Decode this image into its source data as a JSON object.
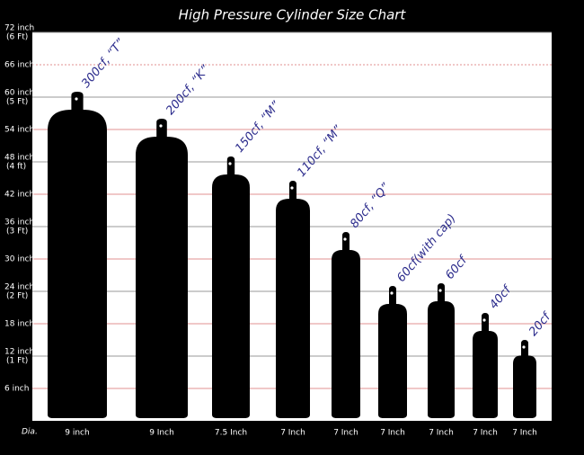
{
  "chart_data": {
    "type": "cylinder",
    "title": "High Pressure Cylinder Size Chart",
    "categories": [
      "300cf, “T”",
      "200cf, “K”",
      "150cf, “M”",
      "110cf, “M”",
      "80cf, “Q”",
      "60cf(with cap)",
      "60cf",
      "40cf",
      "20cf"
    ],
    "values": [
      61,
      56,
      49,
      44.5,
      35,
      25,
      25.5,
      20,
      15
    ],
    "diameter_title": "Dia.",
    "diameters": [
      "9 inch",
      "9 Inch",
      "7.5 Inch",
      "7 Inch",
      "7 Inch",
      "7 Inch",
      "7 Inch",
      "7 Inch",
      "7 Inch"
    ],
    "ylim": [
      0,
      72
    ],
    "yticks": [
      {
        "value": 6,
        "label": "6 inch"
      },
      {
        "value": 12,
        "label": "12 inch",
        "sub": "(1 Ft)"
      },
      {
        "value": 18,
        "label": "18 inch"
      },
      {
        "value": 24,
        "label": "24 inch",
        "sub": "(2 Ft)"
      },
      {
        "value": 30,
        "label": "30 inch"
      },
      {
        "value": 36,
        "label": "36 inch",
        "sub": "(3 Ft)"
      },
      {
        "value": 42,
        "label": "42 inch"
      },
      {
        "value": 48,
        "label": "48 inch",
        "sub": "(4 ft)"
      },
      {
        "value": 54,
        "label": "54 inch"
      },
      {
        "value": 60,
        "label": "60 inch",
        "sub": "(5 Ft)"
      },
      {
        "value": 66,
        "label": "66 inch"
      },
      {
        "value": 72,
        "label": "72 inch",
        "sub": "(6 Ft)"
      }
    ],
    "color": "#000000",
    "grid": true
  }
}
